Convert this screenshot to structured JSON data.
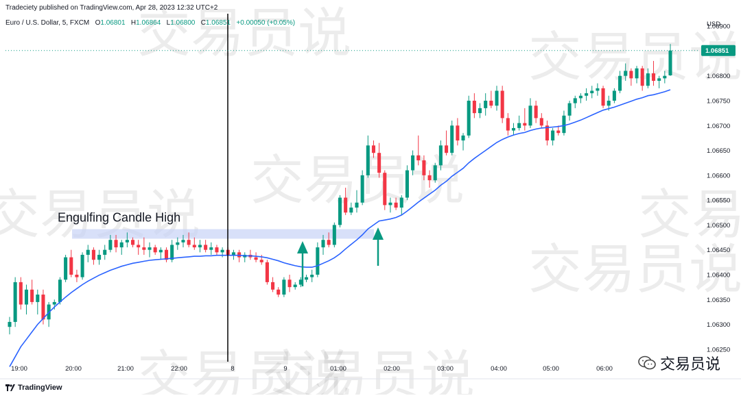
{
  "header": {
    "published": "Tradeciety published on TradingView.com, Apr 28, 2023 12:32 UTC+2",
    "symbol": "Euro / U.S. Dollar, 5, FXCM",
    "o_label": "O",
    "o_val": "1.06801",
    "h_label": "H",
    "h_val": "1.06864",
    "l_label": "L",
    "l_val": "1.06800",
    "c_label": "C",
    "c_val": "1.06851",
    "change": "+0.00050 (+0.05%)"
  },
  "footer": {
    "brand": "TradingView"
  },
  "watermark": {
    "text": "交易员说",
    "bg_text": "交易员说"
  },
  "colors": {
    "up": "#089981",
    "down": "#f23645",
    "ma": "#2962ff",
    "current_price_bg": "#089981",
    "zone": "#c7d3f7",
    "arrow": "#089981"
  },
  "chart_data": {
    "type": "candlestick",
    "title": "Euro / U.S. Dollar, 5, FXCM",
    "currency": "USD",
    "current_price": "1.06851",
    "y_ticks": [
      "1.06900",
      "1.06800",
      "1.06750",
      "1.06700",
      "1.06650",
      "1.06600",
      "1.06550",
      "1.06500",
      "1.06450",
      "1.06400",
      "1.06350",
      "1.06300",
      "1.06250"
    ],
    "x_ticks": [
      "19:00",
      "20:00",
      "21:00",
      "22:00",
      "8",
      "9",
      "01:00",
      "02:00",
      "03:00",
      "04:00",
      "05:00",
      "06:00"
    ],
    "ylim": [
      1.06225,
      1.06925
    ],
    "annotation": {
      "text": "Engulfing Candle High",
      "price": 1.06482
    },
    "candles": [
      [
        1.06295,
        1.06315,
        1.0628,
        1.06305
      ],
      [
        1.06305,
        1.06395,
        1.06295,
        1.06385
      ],
      [
        1.06385,
        1.06395,
        1.0633,
        1.0634
      ],
      [
        1.0634,
        1.0638,
        1.0632,
        1.0637
      ],
      [
        1.0637,
        1.0639,
        1.0634,
        1.06345
      ],
      [
        1.06345,
        1.0637,
        1.0632,
        1.0636
      ],
      [
        1.0636,
        1.0637,
        1.063,
        1.0631
      ],
      [
        1.0631,
        1.06345,
        1.06295,
        1.0634
      ],
      [
        1.0634,
        1.0635,
        1.0633,
        1.06345
      ],
      [
        1.06345,
        1.06395,
        1.0634,
        1.0639
      ],
      [
        1.0639,
        1.0644,
        1.06385,
        1.06435
      ],
      [
        1.06435,
        1.0645,
        1.06395,
        1.064
      ],
      [
        1.064,
        1.0641,
        1.06385,
        1.06395
      ],
      [
        1.06395,
        1.06445,
        1.0639,
        1.0644
      ],
      [
        1.0644,
        1.0646,
        1.06425,
        1.0645
      ],
      [
        1.0645,
        1.06455,
        1.0642,
        1.0643
      ],
      [
        1.0643,
        1.0645,
        1.0642,
        1.0644
      ],
      [
        1.0644,
        1.0646,
        1.0643,
        1.0645
      ],
      [
        1.0645,
        1.0648,
        1.06445,
        1.0647
      ],
      [
        1.0647,
        1.0648,
        1.06445,
        1.06455
      ],
      [
        1.06455,
        1.0647,
        1.0644,
        1.06465
      ],
      [
        1.06465,
        1.06485,
        1.06455,
        1.0647
      ],
      [
        1.0647,
        1.06475,
        1.06455,
        1.0646
      ],
      [
        1.0646,
        1.0647,
        1.0644,
        1.06455
      ],
      [
        1.06455,
        1.06475,
        1.0644,
        1.0645
      ],
      [
        1.0645,
        1.06465,
        1.06435,
        1.06455
      ],
      [
        1.06455,
        1.0646,
        1.0644,
        1.06445
      ],
      [
        1.06445,
        1.06455,
        1.0643,
        1.0645
      ],
      [
        1.0645,
        1.06455,
        1.06425,
        1.0643
      ],
      [
        1.0643,
        1.0647,
        1.06425,
        1.0646
      ],
      [
        1.0646,
        1.06475,
        1.0645,
        1.06465
      ],
      [
        1.06465,
        1.0648,
        1.06455,
        1.0647
      ],
      [
        1.0647,
        1.06485,
        1.06455,
        1.0646
      ],
      [
        1.0646,
        1.06475,
        1.0645,
        1.06455
      ],
      [
        1.06455,
        1.0647,
        1.06445,
        1.0646
      ],
      [
        1.0646,
        1.0647,
        1.06445,
        1.0645
      ],
      [
        1.0645,
        1.06465,
        1.0644,
        1.06455
      ],
      [
        1.06455,
        1.0646,
        1.0644,
        1.06445
      ],
      [
        1.06445,
        1.06455,
        1.06435,
        1.0645
      ],
      [
        1.0645,
        1.06455,
        1.0643,
        1.0644
      ],
      [
        1.0644,
        1.0645,
        1.0643,
        1.06445
      ],
      [
        1.06445,
        1.0645,
        1.06425,
        1.06435
      ],
      [
        1.06435,
        1.06445,
        1.06425,
        1.0644
      ],
      [
        1.0644,
        1.0645,
        1.0643,
        1.06435
      ],
      [
        1.06435,
        1.06445,
        1.06425,
        1.0643
      ],
      [
        1.0643,
        1.0644,
        1.0642,
        1.06425
      ],
      [
        1.06425,
        1.0643,
        1.0638,
        1.06385
      ],
      [
        1.06385,
        1.06395,
        1.06365,
        1.0637
      ],
      [
        1.0637,
        1.06375,
        1.06355,
        1.0636
      ],
      [
        1.0636,
        1.06395,
        1.06355,
        1.0639
      ],
      [
        1.0639,
        1.064,
        1.06365,
        1.06375
      ],
      [
        1.06375,
        1.06385,
        1.0637,
        1.0638
      ],
      [
        1.0638,
        1.06395,
        1.06375,
        1.0639
      ],
      [
        1.0639,
        1.064,
        1.06385,
        1.06395
      ],
      [
        1.06395,
        1.0641,
        1.06385,
        1.064
      ],
      [
        1.064,
        1.06465,
        1.06395,
        1.06455
      ],
      [
        1.06455,
        1.0648,
        1.0644,
        1.0647
      ],
      [
        1.0647,
        1.06485,
        1.06455,
        1.0646
      ],
      [
        1.0646,
        1.06505,
        1.06455,
        1.065
      ],
      [
        1.065,
        1.0656,
        1.06495,
        1.06555
      ],
      [
        1.06555,
        1.06575,
        1.0652,
        1.06525
      ],
      [
        1.06525,
        1.06545,
        1.0652,
        1.06535
      ],
      [
        1.06535,
        1.0657,
        1.06525,
        1.06545
      ],
      [
        1.06545,
        1.0661,
        1.0654,
        1.066
      ],
      [
        1.066,
        1.0668,
        1.06595,
        1.0666
      ],
      [
        1.0666,
        1.0667,
        1.06635,
        1.06645
      ],
      [
        1.06645,
        1.06665,
        1.06595,
        1.06605
      ],
      [
        1.06605,
        1.0661,
        1.0653,
        1.0654
      ],
      [
        1.0654,
        1.06555,
        1.06525,
        1.06545
      ],
      [
        1.06545,
        1.06555,
        1.0653,
        1.06535
      ],
      [
        1.06535,
        1.0656,
        1.0652,
        1.06555
      ],
      [
        1.06555,
        1.0662,
        1.0655,
        1.0661
      ],
      [
        1.0661,
        1.0665,
        1.066,
        1.0664
      ],
      [
        1.0664,
        1.0668,
        1.0662,
        1.0663
      ],
      [
        1.0663,
        1.0664,
        1.0659,
        1.066
      ],
      [
        1.066,
        1.0661,
        1.06575,
        1.0659
      ],
      [
        1.0659,
        1.06625,
        1.06585,
        1.0662
      ],
      [
        1.0662,
        1.0667,
        1.0661,
        1.0666
      ],
      [
        1.0666,
        1.0669,
        1.0664,
        1.06645
      ],
      [
        1.06645,
        1.0671,
        1.0664,
        1.067
      ],
      [
        1.067,
        1.06715,
        1.0666,
        1.0667
      ],
      [
        1.0667,
        1.06685,
        1.0665,
        1.0668
      ],
      [
        1.0668,
        1.0676,
        1.06675,
        1.0675
      ],
      [
        1.0675,
        1.06765,
        1.06715,
        1.06725
      ],
      [
        1.06725,
        1.06745,
        1.06715,
        1.06735
      ],
      [
        1.06735,
        1.06765,
        1.0672,
        1.0675
      ],
      [
        1.0675,
        1.0677,
        1.06735,
        1.0674
      ],
      [
        1.0674,
        1.0678,
        1.0673,
        1.0677
      ],
      [
        1.0677,
        1.0678,
        1.06705,
        1.06715
      ],
      [
        1.06715,
        1.06725,
        1.0668,
        1.0669
      ],
      [
        1.0669,
        1.06705,
        1.0668,
        1.06695
      ],
      [
        1.06695,
        1.0672,
        1.0669,
        1.06705
      ],
      [
        1.06705,
        1.06735,
        1.0669,
        1.067
      ],
      [
        1.067,
        1.06755,
        1.06695,
        1.0674
      ],
      [
        1.0674,
        1.0675,
        1.06705,
        1.06715
      ],
      [
        1.06715,
        1.06725,
        1.06695,
        1.067
      ],
      [
        1.067,
        1.0671,
        1.0666,
        1.0667
      ],
      [
        1.0667,
        1.06695,
        1.0666,
        1.0669
      ],
      [
        1.0669,
        1.067,
        1.0668,
        1.06685
      ],
      [
        1.06685,
        1.0673,
        1.0668,
        1.0672
      ],
      [
        1.0672,
        1.0675,
        1.0671,
        1.06745
      ],
      [
        1.06745,
        1.0676,
        1.06735,
        1.06755
      ],
      [
        1.06755,
        1.06765,
        1.06745,
        1.0676
      ],
      [
        1.0676,
        1.06775,
        1.0675,
        1.06765
      ],
      [
        1.06765,
        1.0678,
        1.06755,
        1.0677
      ],
      [
        1.0677,
        1.06785,
        1.0676,
        1.06775
      ],
      [
        1.06775,
        1.0678,
        1.06735,
        1.0674
      ],
      [
        1.0674,
        1.0676,
        1.0673,
        1.0675
      ],
      [
        1.0675,
        1.06775,
        1.06745,
        1.0677
      ],
      [
        1.0677,
        1.0681,
        1.06765,
        1.068
      ],
      [
        1.068,
        1.06825,
        1.0679,
        1.0681
      ],
      [
        1.0681,
        1.06815,
        1.0678,
        1.06795
      ],
      [
        1.06795,
        1.0682,
        1.06785,
        1.06815
      ],
      [
        1.06815,
        1.0682,
        1.0677,
        1.0678
      ],
      [
        1.0678,
        1.06815,
        1.06775,
        1.06805
      ],
      [
        1.06805,
        1.0683,
        1.0678,
        1.0679
      ],
      [
        1.0679,
        1.068,
        1.06775,
        1.06795
      ],
      [
        1.06795,
        1.0681,
        1.06785,
        1.068
      ],
      [
        1.06801,
        1.06864,
        1.068,
        1.06851
      ]
    ],
    "ma": [
      1.06215,
      1.06235,
      1.06255,
      1.0627,
      1.06285,
      1.063,
      1.06312,
      1.06324,
      1.06335,
      1.06345,
      1.06355,
      1.06364,
      1.06372,
      1.0638,
      1.06387,
      1.06393,
      1.06399,
      1.06404,
      1.06409,
      1.06413,
      1.06417,
      1.0642,
      1.06423,
      1.06425,
      1.06427,
      1.06429,
      1.0643,
      1.06431,
      1.06432,
      1.06433,
      1.06434,
      1.06435,
      1.06436,
      1.06437,
      1.06437,
      1.06438,
      1.06438,
      1.06439,
      1.06439,
      1.06439,
      1.06439,
      1.06439,
      1.06438,
      1.06438,
      1.06437,
      1.06436,
      1.06434,
      1.06431,
      1.06428,
      1.06424,
      1.06421,
      1.06418,
      1.06416,
      1.06415,
      1.06415,
      1.06418,
      1.06423,
      1.06428,
      1.06434,
      1.06442,
      1.06452,
      1.06461,
      1.0647,
      1.0648,
      1.06492,
      1.065,
      1.06508,
      1.0651,
      1.06512,
      1.06515,
      1.0652,
      1.06528,
      1.06537,
      1.06546,
      1.06554,
      1.06562,
      1.0657,
      1.0658,
      1.06588,
      1.06598,
      1.06606,
      1.06614,
      1.06625,
      1.06634,
      1.06642,
      1.0665,
      1.06658,
      1.06666,
      1.06672,
      1.06677,
      1.06681,
      1.06684,
      1.06686,
      1.0669,
      1.06693,
      1.06695,
      1.06696,
      1.06697,
      1.06698,
      1.067,
      1.06703,
      1.06707,
      1.06711,
      1.06716,
      1.06721,
      1.06726,
      1.06731,
      1.06734,
      1.06737,
      1.06741,
      1.06745,
      1.06749,
      1.06753,
      1.06756,
      1.0676,
      1.06762,
      1.06765,
      1.06768,
      1.06772
    ]
  }
}
